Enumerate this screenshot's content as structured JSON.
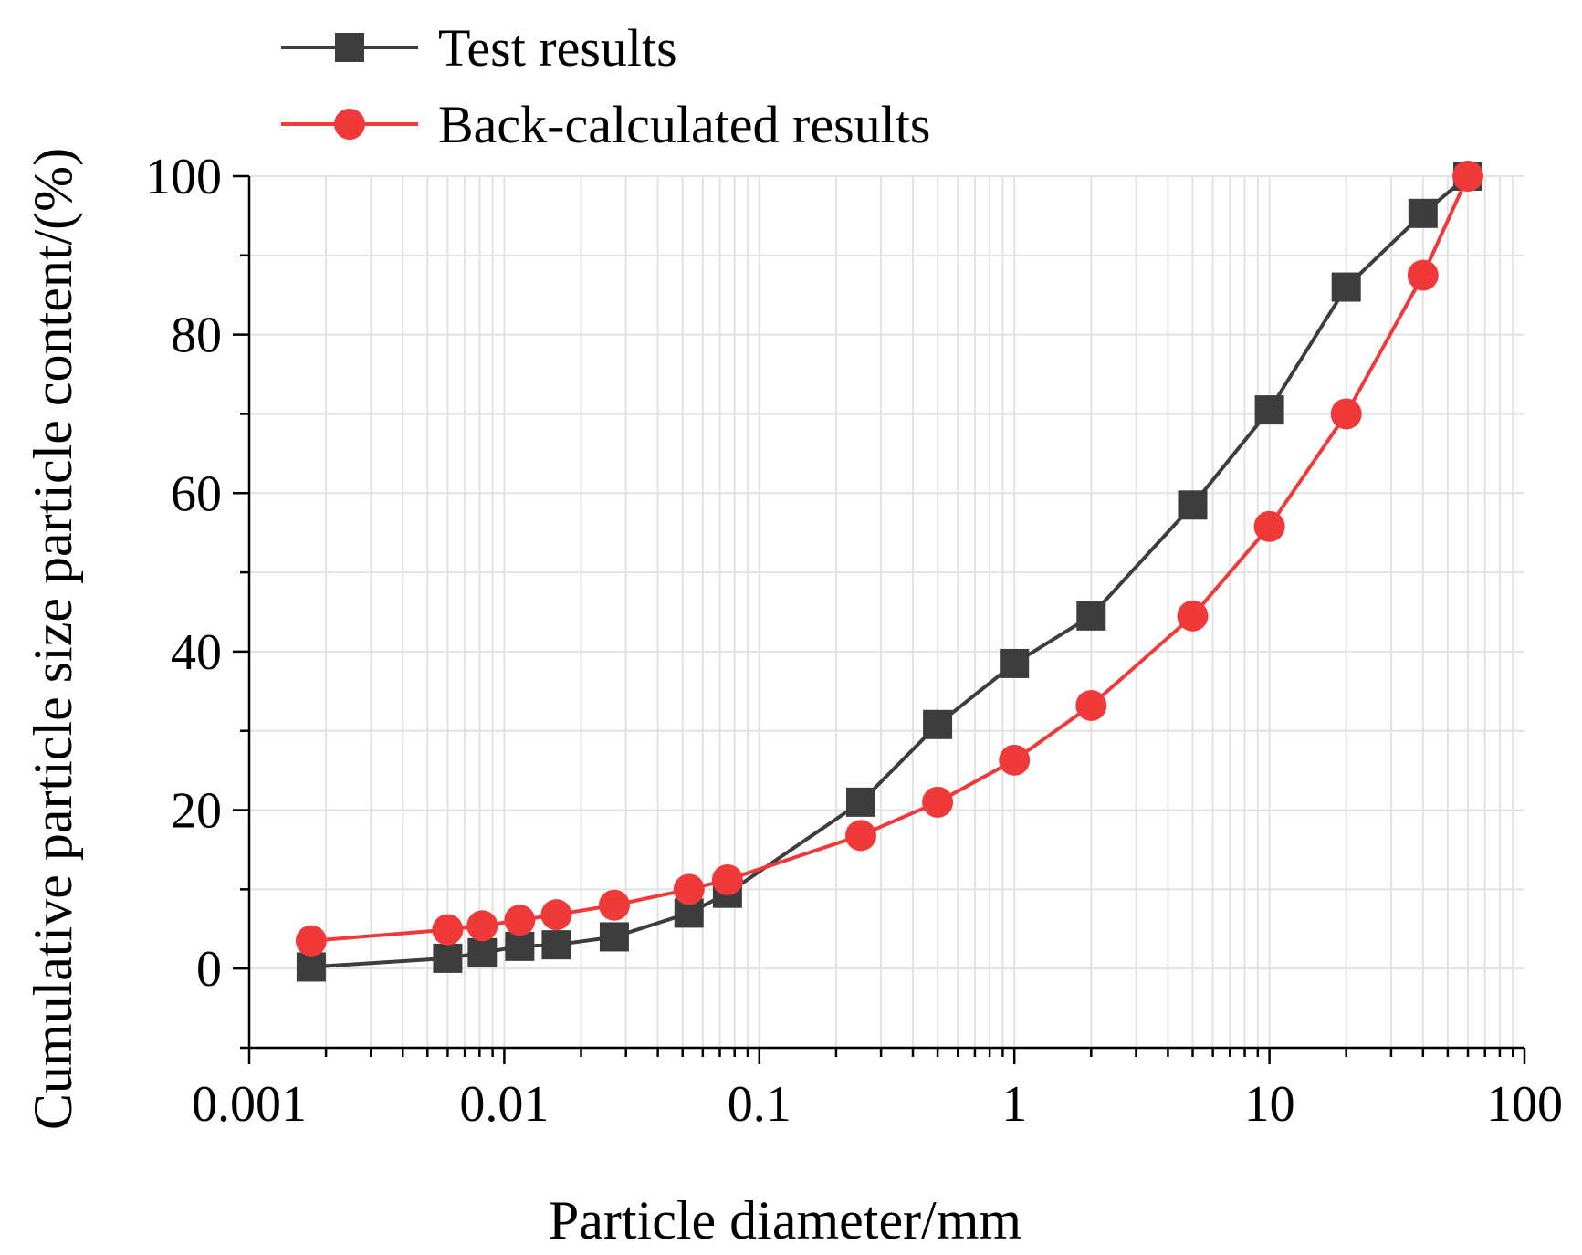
{
  "chart_data": {
    "type": "line",
    "title": "",
    "xlabel": "Particle diameter/mm",
    "ylabel": "Cumulative particle size particle content/(%)",
    "xscale": "log",
    "xlim": [
      0.001,
      100
    ],
    "ylim": [
      -10,
      100
    ],
    "x_ticks": [
      0.001,
      0.01,
      0.1,
      1,
      10,
      100
    ],
    "x_tick_labels": [
      "0.001",
      "0.01",
      "0.1",
      "1",
      "10",
      "100"
    ],
    "y_ticks": [
      0,
      20,
      40,
      60,
      80,
      100
    ],
    "y_tick_labels": [
      "0",
      "20",
      "40",
      "60",
      "80",
      "100"
    ],
    "grid": true,
    "legend_position": "top-left, above plot",
    "series": [
      {
        "name": "Test results",
        "color": "#3d3d3d",
        "marker": "square",
        "x": [
          0.00175,
          0.006,
          0.0082,
          0.0115,
          0.016,
          0.027,
          0.053,
          0.075,
          0.25,
          0.5,
          1,
          2,
          5,
          10,
          20,
          40,
          60
        ],
        "y": [
          0.2,
          1.3,
          2.0,
          2.8,
          3.0,
          4.0,
          7.0,
          9.5,
          21.0,
          30.8,
          38.5,
          44.5,
          58.5,
          70.5,
          86.0,
          95.3,
          100
        ]
      },
      {
        "name": "Back-calculated results",
        "color": "#f03a3a",
        "marker": "circle",
        "x": [
          0.00175,
          0.006,
          0.0082,
          0.0115,
          0.016,
          0.027,
          0.053,
          0.075,
          0.25,
          0.5,
          1,
          2,
          5,
          10,
          20,
          40,
          60
        ],
        "y": [
          3.5,
          4.9,
          5.4,
          6.1,
          6.8,
          8.0,
          10.0,
          11.2,
          16.8,
          21.0,
          26.3,
          33.2,
          44.5,
          55.8,
          70.0,
          87.5,
          100
        ]
      }
    ]
  }
}
